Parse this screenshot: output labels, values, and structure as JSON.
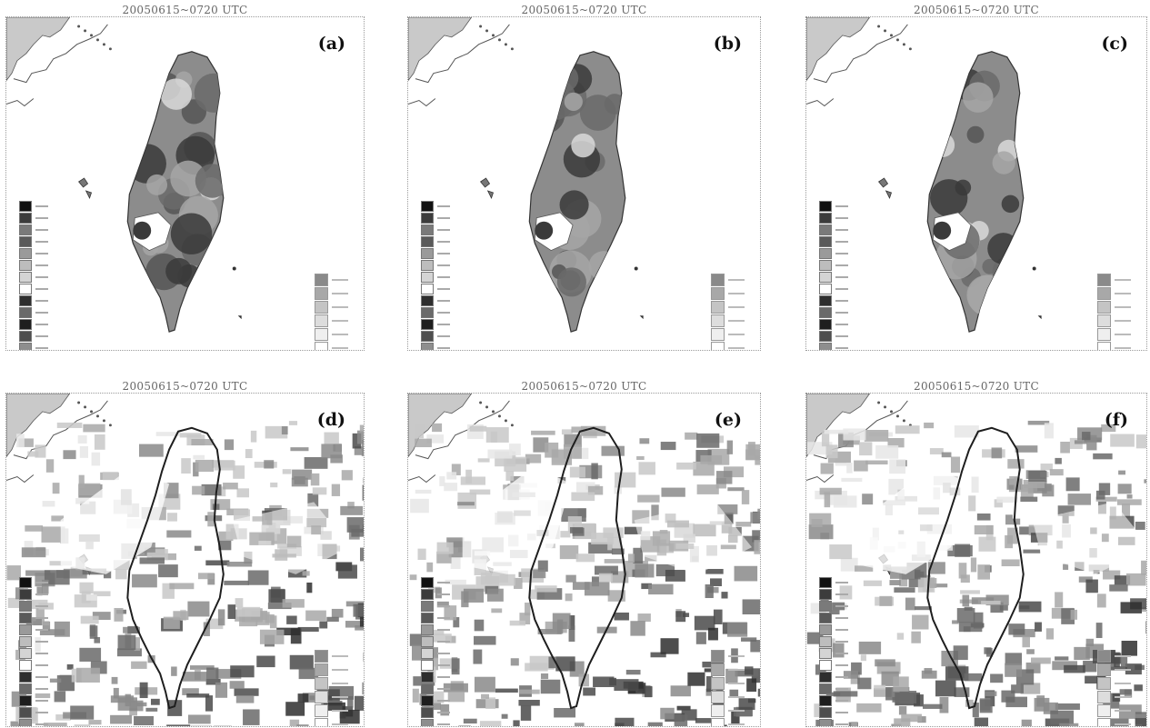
{
  "figure": {
    "panels": [
      {
        "title": "20050615~0720 UTC",
        "label": "(a)",
        "kind": "island"
      },
      {
        "title": "20050615~0720 UTC",
        "label": "(b)",
        "kind": "island"
      },
      {
        "title": "20050615~0720 UTC",
        "label": "(c)",
        "kind": "island"
      },
      {
        "title": "20050615~0720 UTC",
        "label": "(d)",
        "kind": "full"
      },
      {
        "title": "20050615~0720 UTC",
        "label": "(e)",
        "kind": "full"
      },
      {
        "title": "20050615~0720 UTC",
        "label": "(f)",
        "kind": "full"
      }
    ],
    "colors": {
      "land_base": "#8c8c8c",
      "dark": "#3a3a3a",
      "mid": "#a6a6a6",
      "light": "#d9d9d9",
      "white": "#ffffff",
      "coast": "#555555"
    },
    "legend_left_shades": [
      "#111111",
      "#3c3c3c",
      "#7a7a7a",
      "#5a5a5a",
      "#9a9a9a",
      "#bdbdbd",
      "#d4d4d4",
      "#ffffff",
      "#2e2e2e",
      "#6a6a6a",
      "#1e1e1e",
      "#4e4e4e",
      "#8e8e8e",
      "#b0b0b0"
    ],
    "legend_right_shades": [
      "#8a8a8a",
      "#a8a8a8",
      "#c4c4c4",
      "#dddddd",
      "#efefef",
      "#ffffff"
    ]
  }
}
